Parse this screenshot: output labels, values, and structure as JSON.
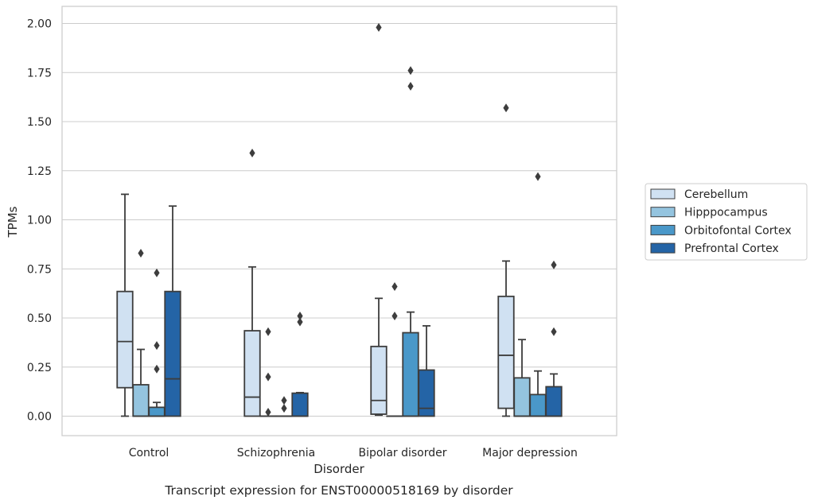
{
  "chart_data": {
    "type": "box",
    "xlabel": "Disorder",
    "ylabel": "TPMs",
    "caption": "Transcript expression for ENST00000518169 by disorder",
    "ylim": [
      -0.1,
      2.08
    ],
    "yticks": [
      "0.00",
      "0.25",
      "0.50",
      "0.75",
      "1.00",
      "1.25",
      "1.50",
      "1.75",
      "2.00"
    ],
    "grid": "horizontal",
    "legend_position": "right",
    "categories": [
      "Control",
      "Schizophrenia",
      "Bipolar disorder",
      "Major depression"
    ],
    "series": [
      {
        "name": "Cerebellum",
        "color": "#d0e1f2",
        "boxes": [
          {
            "whislo": 0.0,
            "q1": 0.145,
            "med": 0.38,
            "q3": 0.635,
            "whishi": 1.13,
            "fliers": []
          },
          {
            "whislo": 0.0,
            "q1": 0.0,
            "med": 0.097,
            "q3": 0.435,
            "whishi": 0.76,
            "fliers": [
              1.34
            ]
          },
          {
            "whislo": 0.005,
            "q1": 0.01,
            "med": 0.08,
            "q3": 0.355,
            "whishi": 0.6,
            "fliers": [
              1.98
            ]
          },
          {
            "whislo": 0.0,
            "q1": 0.04,
            "med": 0.31,
            "q3": 0.61,
            "whishi": 0.79,
            "fliers": [
              1.57
            ]
          }
        ]
      },
      {
        "name": "Hipppocampus",
        "color": "#94c4df",
        "boxes": [
          {
            "whislo": 0.0,
            "q1": 0.0,
            "med": 0.0,
            "q3": 0.16,
            "whishi": 0.34,
            "fliers": [
              0.83
            ]
          },
          {
            "whislo": 0.0,
            "q1": 0.0,
            "med": 0.0,
            "q3": 0.0,
            "whishi": 0.0,
            "fliers": [
              0.43,
              0.2,
              0.02
            ]
          },
          {
            "whislo": 0.0,
            "q1": 0.0,
            "med": 0.0,
            "q3": 0.0,
            "whishi": 0.0,
            "fliers": [
              0.66,
              0.51
            ]
          },
          {
            "whislo": 0.0,
            "q1": 0.0,
            "med": 0.0,
            "q3": 0.195,
            "whishi": 0.39,
            "fliers": []
          }
        ]
      },
      {
        "name": "Orbitofontal Cortex",
        "color": "#4a98c9",
        "boxes": [
          {
            "whislo": 0.0,
            "q1": 0.0,
            "med": 0.0,
            "q3": 0.045,
            "whishi": 0.07,
            "fliers": [
              0.73,
              0.36,
              0.24
            ]
          },
          {
            "whislo": 0.0,
            "q1": 0.0,
            "med": 0.0,
            "q3": 0.0,
            "whishi": 0.0,
            "fliers": [
              0.08,
              0.04
            ]
          },
          {
            "whislo": 0.0,
            "q1": 0.0,
            "med": 0.0,
            "q3": 0.425,
            "whishi": 0.53,
            "fliers": [
              1.76,
              1.68
            ]
          },
          {
            "whislo": 0.0,
            "q1": 0.0,
            "med": 0.0,
            "q3": 0.11,
            "whishi": 0.23,
            "fliers": [
              1.22
            ]
          }
        ]
      },
      {
        "name": "Prefrontal Cortex",
        "color": "#2464a6",
        "boxes": [
          {
            "whislo": 0.0,
            "q1": 0.0,
            "med": 0.19,
            "q3": 0.635,
            "whishi": 1.07,
            "fliers": []
          },
          {
            "whislo": 0.0,
            "q1": 0.0,
            "med": 0.0,
            "q3": 0.117,
            "whishi": 0.12,
            "fliers": [
              0.51,
              0.48
            ]
          },
          {
            "whislo": 0.0,
            "q1": 0.0,
            "med": 0.04,
            "q3": 0.235,
            "whishi": 0.46,
            "fliers": []
          },
          {
            "whislo": 0.0,
            "q1": 0.0,
            "med": 0.0,
            "q3": 0.15,
            "whishi": 0.215,
            "fliers": [
              0.77,
              0.43
            ]
          }
        ]
      }
    ]
  }
}
